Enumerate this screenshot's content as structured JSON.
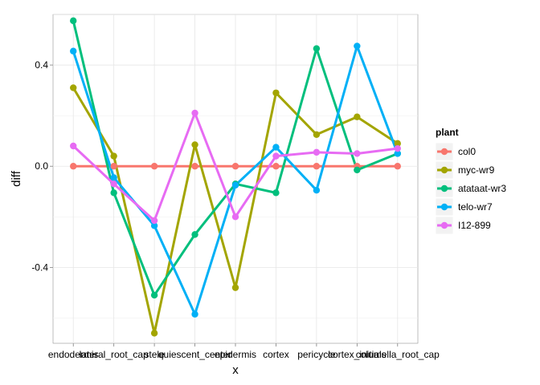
{
  "chart_data": {
    "type": "line",
    "xlabel": "x",
    "ylabel": "diff",
    "categories": [
      "endodermis",
      "lateral_root_cap",
      "stele",
      "quiescent_center",
      "epidermis",
      "cortex",
      "pericycle",
      "cortex_initials",
      "columella_root_cap"
    ],
    "ylim": [
      -0.7,
      0.6
    ],
    "yticks": [
      -0.4,
      0.0,
      0.4
    ],
    "ytick_labels": [
      "-0.4",
      "0.0",
      "0.4"
    ],
    "grid": true,
    "legend_title": "plant",
    "legend_position": "right",
    "series": [
      {
        "name": "col0",
        "color": "#F8766D",
        "values": [
          0.0,
          0.0,
          0.0,
          0.0,
          0.0,
          0.0,
          0.0,
          0.0,
          0.0
        ]
      },
      {
        "name": "myc-wr9",
        "color": "#A3A500",
        "values": [
          0.31,
          0.04,
          -0.66,
          0.085,
          -0.48,
          0.29,
          0.125,
          0.195,
          0.09
        ]
      },
      {
        "name": "atataat-wr3",
        "color": "#00BF7D",
        "values": [
          0.575,
          -0.105,
          -0.51,
          -0.27,
          -0.07,
          -0.105,
          0.465,
          -0.015,
          0.05
        ]
      },
      {
        "name": "telo-wr7",
        "color": "#00B0F6",
        "values": [
          0.455,
          -0.045,
          -0.235,
          -0.585,
          -0.075,
          0.075,
          -0.095,
          0.475,
          0.05
        ]
      },
      {
        "name": "I12-899",
        "color": "#E76BF3",
        "values": [
          0.08,
          -0.07,
          -0.215,
          0.21,
          -0.2,
          0.04,
          0.055,
          0.05,
          0.07
        ]
      }
    ]
  }
}
